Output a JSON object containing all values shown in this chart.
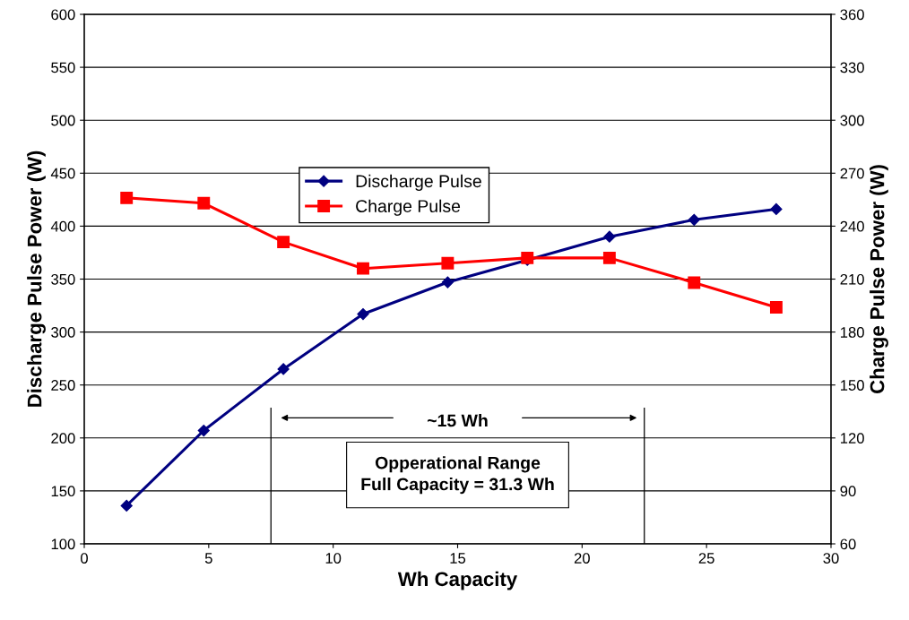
{
  "chart_data": {
    "type": "line",
    "xlabel": "Wh Capacity",
    "ylabel": "Discharge Pulse Power (W)",
    "y2label": "Charge Pulse Power (W)",
    "xlim": [
      0,
      30
    ],
    "xticks": [
      0,
      5,
      10,
      15,
      20,
      25,
      30
    ],
    "ylim": [
      100,
      600
    ],
    "yticks": [
      100,
      150,
      200,
      250,
      300,
      350,
      400,
      450,
      500,
      550,
      600
    ],
    "y2lim": [
      60,
      360
    ],
    "y2ticks": [
      60,
      90,
      120,
      150,
      180,
      210,
      240,
      270,
      300,
      330,
      360
    ],
    "grid": "y",
    "legend": "top",
    "series": [
      {
        "name": "Discharge Pulse",
        "color": "#000080",
        "marker": "diamond",
        "x": [
          1.7,
          4.8,
          8.0,
          11.2,
          14.6,
          17.8,
          21.1,
          24.5,
          27.8
        ],
        "values": [
          136,
          207,
          265,
          317,
          347,
          368,
          390,
          406,
          416
        ]
      },
      {
        "name": "Charge Pulse",
        "color": "#ff0000",
        "marker": "square",
        "axis": "y2",
        "x": [
          1.7,
          4.8,
          8.0,
          11.2,
          14.6,
          17.8,
          21.1,
          24.5,
          27.8
        ],
        "values": [
          256,
          253,
          231,
          216,
          219,
          222,
          222,
          208,
          194
        ]
      }
    ],
    "ref_lines": [
      {
        "axis": "x",
        "value": 7.5,
        "label": null
      },
      {
        "axis": "x",
        "value": 22.5,
        "label": null
      }
    ],
    "annotations": [
      "~15 Wh",
      "Opperational Range\nFull Capacity = 31.3 Wh"
    ]
  }
}
